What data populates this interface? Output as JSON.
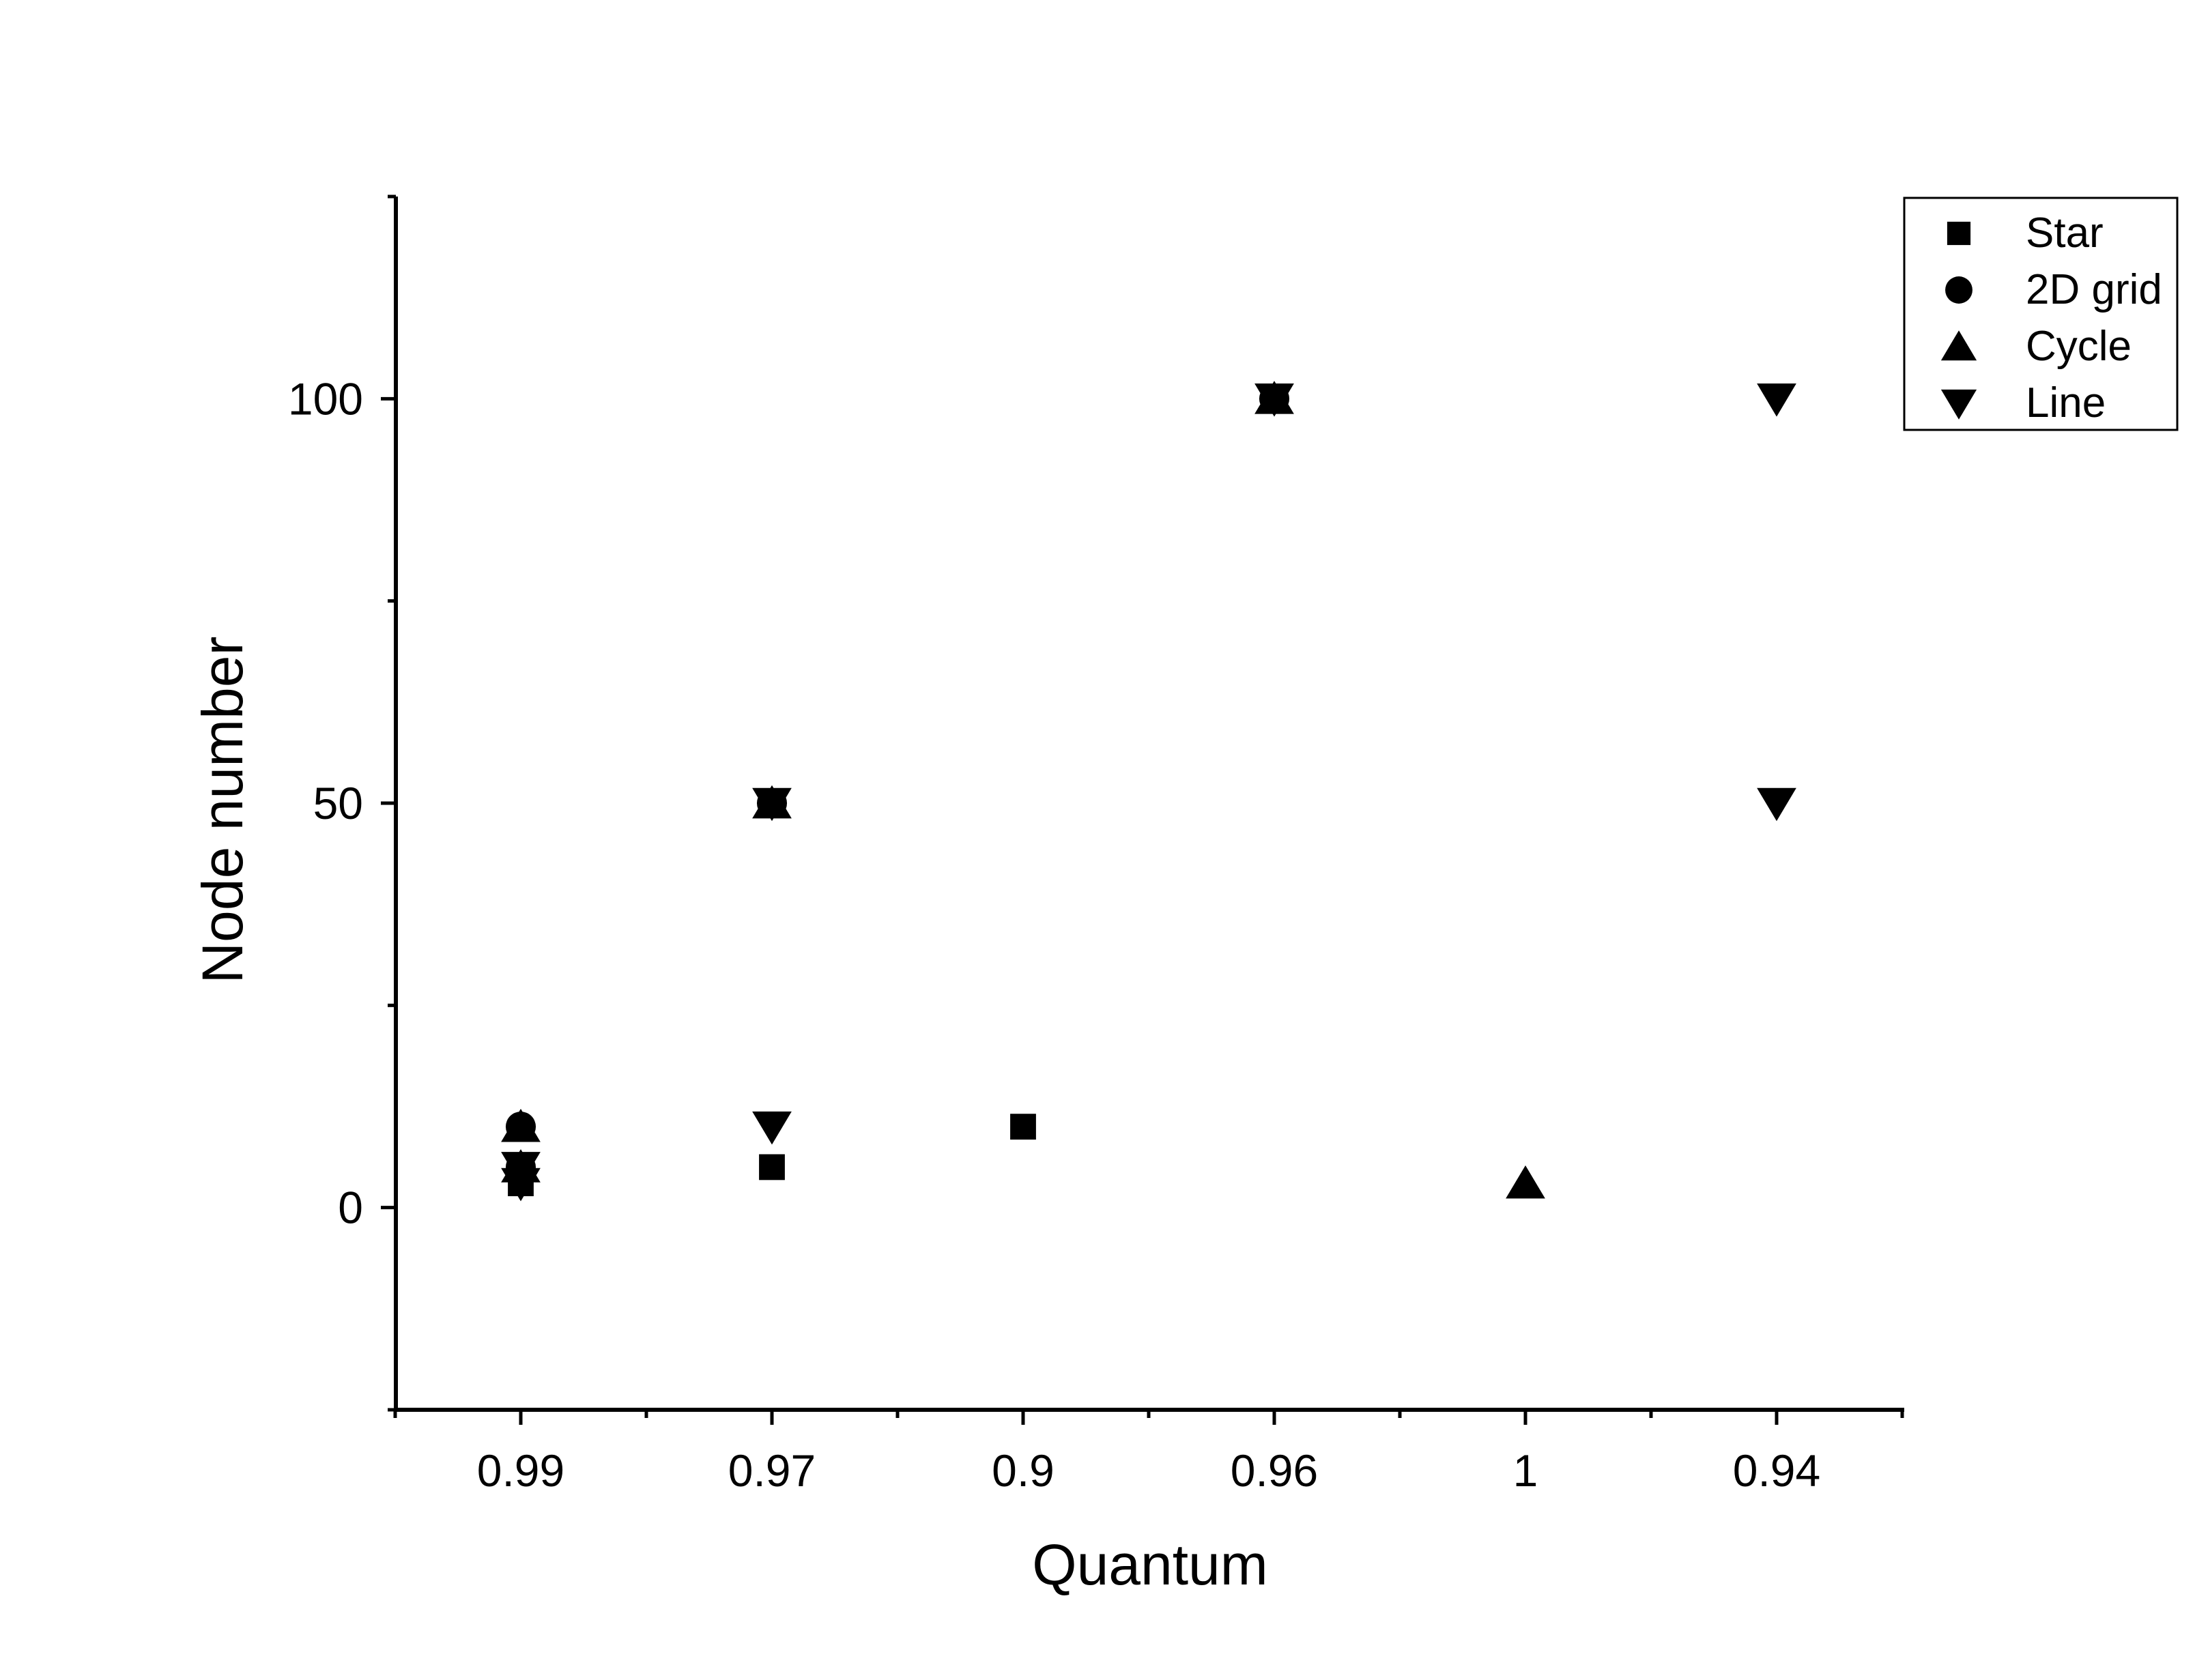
{
  "chart_data": {
    "type": "scatter",
    "title": "",
    "xlabel": "Quantum",
    "ylabel": "Node number",
    "x_axis_kind": "categorical",
    "categories": [
      "0.99",
      "0.97",
      "0.9",
      "0.96",
      "1",
      "0.94"
    ],
    "ylim": [
      -25,
      125
    ],
    "yticks": [
      0,
      50,
      100
    ],
    "grid": false,
    "legend_position": "top-right",
    "series": [
      {
        "name": "Star",
        "marker": "square",
        "points": [
          {
            "x": "0.99",
            "y": 3
          },
          {
            "x": "0.97",
            "y": 5
          },
          {
            "x": "0.9",
            "y": 10
          },
          {
            "x": "0.96",
            "y": 100
          },
          {
            "x": "0.97",
            "y": 50
          }
        ]
      },
      {
        "name": "2D grid",
        "marker": "circle",
        "points": [
          {
            "x": "0.99",
            "y": 10
          },
          {
            "x": "0.99",
            "y": 5
          },
          {
            "x": "0.97",
            "y": 50
          },
          {
            "x": "0.96",
            "y": 100
          }
        ]
      },
      {
        "name": "Cycle",
        "marker": "triangle-up",
        "points": [
          {
            "x": "1",
            "y": 3
          },
          {
            "x": "0.99",
            "y": 5
          },
          {
            "x": "0.99",
            "y": 10
          },
          {
            "x": "0.97",
            "y": 50
          },
          {
            "x": "0.96",
            "y": 100
          }
        ]
      },
      {
        "name": "Line",
        "marker": "triangle-down",
        "points": [
          {
            "x": "0.99",
            "y": 3
          },
          {
            "x": "0.99",
            "y": 5
          },
          {
            "x": "0.97",
            "y": 10
          },
          {
            "x": "0.97",
            "y": 50
          },
          {
            "x": "0.96",
            "y": 100
          },
          {
            "x": "0.94",
            "y": 50
          },
          {
            "x": "0.94",
            "y": 100
          }
        ]
      }
    ],
    "colors": {
      "marker": "#000000",
      "axis": "#000000",
      "background": "#ffffff"
    }
  }
}
